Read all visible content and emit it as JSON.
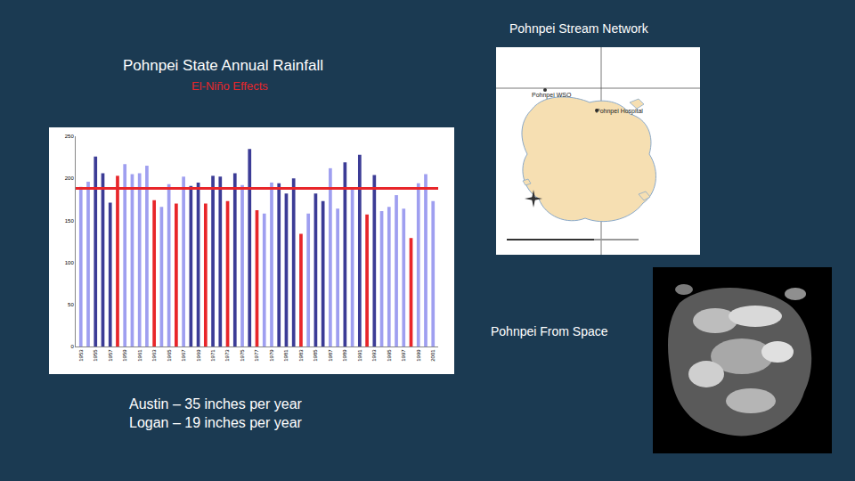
{
  "chart_data": {
    "type": "bar",
    "title": "Pohnpei State Annual Rainfall",
    "subtitle": "El-Niño Effects",
    "categories": [
      "1953",
      null,
      "1955",
      null,
      "1957",
      null,
      "1959",
      null,
      "1961",
      null,
      "1963",
      null,
      "1965",
      null,
      "1967",
      null,
      "1969",
      null,
      "1971",
      null,
      "1973",
      null,
      "1975",
      null,
      "1977",
      null,
      "1979",
      null,
      "1981",
      null,
      "1983",
      null,
      "1985",
      null,
      "1987",
      null,
      "1989",
      null,
      "1991",
      null,
      "1993",
      null,
      "1995",
      null,
      "1997",
      null,
      "1999",
      null,
      "2001"
    ],
    "values": [
      190,
      196,
      226,
      206,
      171,
      203,
      217,
      205,
      206,
      215,
      174,
      166,
      193,
      170,
      202,
      191,
      195,
      170,
      203,
      202,
      173,
      206,
      192,
      235,
      162,
      158,
      195,
      194,
      182,
      200,
      134,
      158,
      182,
      173,
      212,
      164,
      219,
      187,
      228,
      157,
      204,
      161,
      166,
      180,
      164,
      129,
      194,
      205,
      173
    ],
    "colors": [
      "#9f9ff0",
      "#9f9ff0",
      "#3c3c96",
      "#3c3c96",
      "#3c3c96",
      "#e8262a",
      "#9f9ff0",
      "#9f9ff0",
      "#9f9ff0",
      "#9f9ff0",
      "#e8262a",
      "#9f9ff0",
      "#9f9ff0",
      "#e8262a",
      "#9f9ff0",
      "#3c3c96",
      "#3c3c96",
      "#e8262a",
      "#3c3c96",
      "#3c3c96",
      "#e8262a",
      "#3c3c96",
      "#9f9ff0",
      "#3c3c96",
      "#e8262a",
      "#9f9ff0",
      "#9f9ff0",
      "#3c3c96",
      "#3c3c96",
      "#3c3c96",
      "#e8262a",
      "#9f9ff0",
      "#3c3c96",
      "#3c3c96",
      "#9f9ff0",
      "#9f9ff0",
      "#3c3c96",
      "#9f9ff0",
      "#3c3c96",
      "#e8262a",
      "#3c3c96",
      "#9f9ff0",
      "#9f9ff0",
      "#9f9ff0",
      "#9f9ff0",
      "#e8262a",
      "#9f9ff0",
      "#9f9ff0",
      "#9f9ff0"
    ],
    "reference_line": 188,
    "reference_line_color": "#e8262a",
    "ylim": [
      0,
      250
    ],
    "yticks": [
      0,
      50,
      100,
      150,
      200,
      250
    ],
    "grid": false
  },
  "slide": {
    "notes": [
      "Austin – 35 inches per year",
      "Logan – 19 inches per year"
    ],
    "map": {
      "title": "Pohnpei Stream Network",
      "labels": [
        "Pohnpei WSO",
        "Pohnpei Hospital"
      ]
    },
    "satellite": {
      "title": "Pohnpei From Space"
    }
  }
}
